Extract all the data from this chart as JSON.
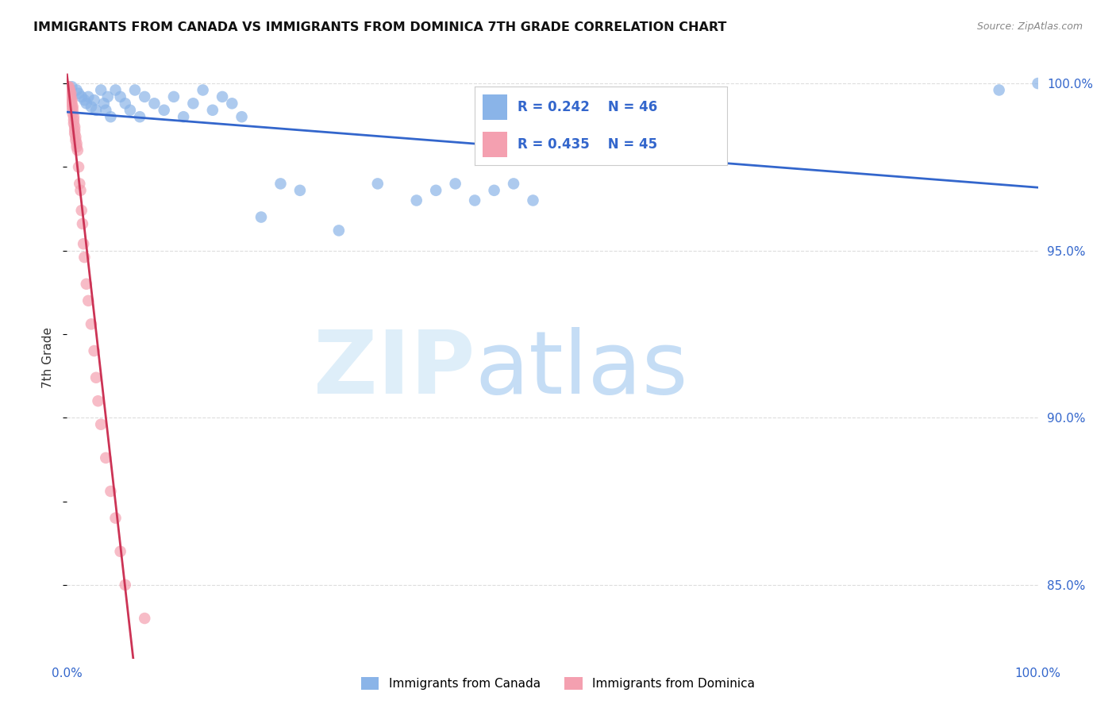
{
  "title": "IMMIGRANTS FROM CANADA VS IMMIGRANTS FROM DOMINICA 7TH GRADE CORRELATION CHART",
  "source": "Source: ZipAtlas.com",
  "ylabel": "7th Grade",
  "canada_color": "#8ab4e8",
  "dominica_color": "#f4a0b0",
  "canada_line_color": "#3366cc",
  "dominica_line_color": "#cc3355",
  "watermark_zip_color": "#cce0f5",
  "watermark_atlas_color": "#b0d0f0",
  "background_color": "#ffffff",
  "grid_color": "#dddddd",
  "xlim": [
    0.0,
    1.0
  ],
  "ylim": [
    0.828,
    1.008
  ],
  "yticks": [
    0.85,
    0.9,
    0.95,
    1.0
  ],
  "ytick_labels": [
    "85.0%",
    "90.0%",
    "95.0%",
    "100.0%"
  ],
  "legend_R_canada": "R = 0.242",
  "legend_N_canada": "N = 46",
  "legend_R_dominica": "R = 0.435",
  "legend_N_dominica": "N = 45",
  "canada_x": [
    0.005,
    0.01,
    0.012,
    0.015,
    0.018,
    0.02,
    0.022,
    0.025,
    0.028,
    0.03,
    0.035,
    0.038,
    0.04,
    0.042,
    0.045,
    0.05,
    0.055,
    0.06,
    0.065,
    0.07,
    0.075,
    0.08,
    0.09,
    0.1,
    0.11,
    0.12,
    0.13,
    0.14,
    0.15,
    0.16,
    0.17,
    0.18,
    0.2,
    0.22,
    0.24,
    0.28,
    0.32,
    0.36,
    0.38,
    0.4,
    0.42,
    0.44,
    0.46,
    0.48,
    0.96,
    1.0
  ],
  "canada_y": [
    0.999,
    0.998,
    0.997,
    0.996,
    0.995,
    0.994,
    0.996,
    0.993,
    0.995,
    0.992,
    0.998,
    0.994,
    0.992,
    0.996,
    0.99,
    0.998,
    0.996,
    0.994,
    0.992,
    0.998,
    0.99,
    0.996,
    0.994,
    0.992,
    0.996,
    0.99,
    0.994,
    0.998,
    0.992,
    0.996,
    0.994,
    0.99,
    0.96,
    0.97,
    0.968,
    0.956,
    0.97,
    0.965,
    0.968,
    0.97,
    0.965,
    0.968,
    0.97,
    0.965,
    0.998,
    1.0
  ],
  "dominica_x": [
    0.001,
    0.002,
    0.002,
    0.003,
    0.003,
    0.004,
    0.004,
    0.004,
    0.005,
    0.005,
    0.005,
    0.006,
    0.006,
    0.006,
    0.007,
    0.007,
    0.007,
    0.008,
    0.008,
    0.008,
    0.009,
    0.009,
    0.01,
    0.01,
    0.011,
    0.012,
    0.013,
    0.014,
    0.015,
    0.016,
    0.017,
    0.018,
    0.02,
    0.022,
    0.025,
    0.028,
    0.03,
    0.032,
    0.035,
    0.04,
    0.045,
    0.05,
    0.055,
    0.06,
    0.08
  ],
  "dominica_y": [
    0.999,
    0.999,
    0.998,
    0.998,
    0.997,
    0.997,
    0.996,
    0.995,
    0.995,
    0.994,
    0.993,
    0.993,
    0.992,
    0.991,
    0.99,
    0.989,
    0.988,
    0.987,
    0.986,
    0.985,
    0.984,
    0.983,
    0.982,
    0.981,
    0.98,
    0.975,
    0.97,
    0.968,
    0.962,
    0.958,
    0.952,
    0.948,
    0.94,
    0.935,
    0.928,
    0.92,
    0.912,
    0.905,
    0.898,
    0.888,
    0.878,
    0.87,
    0.86,
    0.85,
    0.84
  ]
}
